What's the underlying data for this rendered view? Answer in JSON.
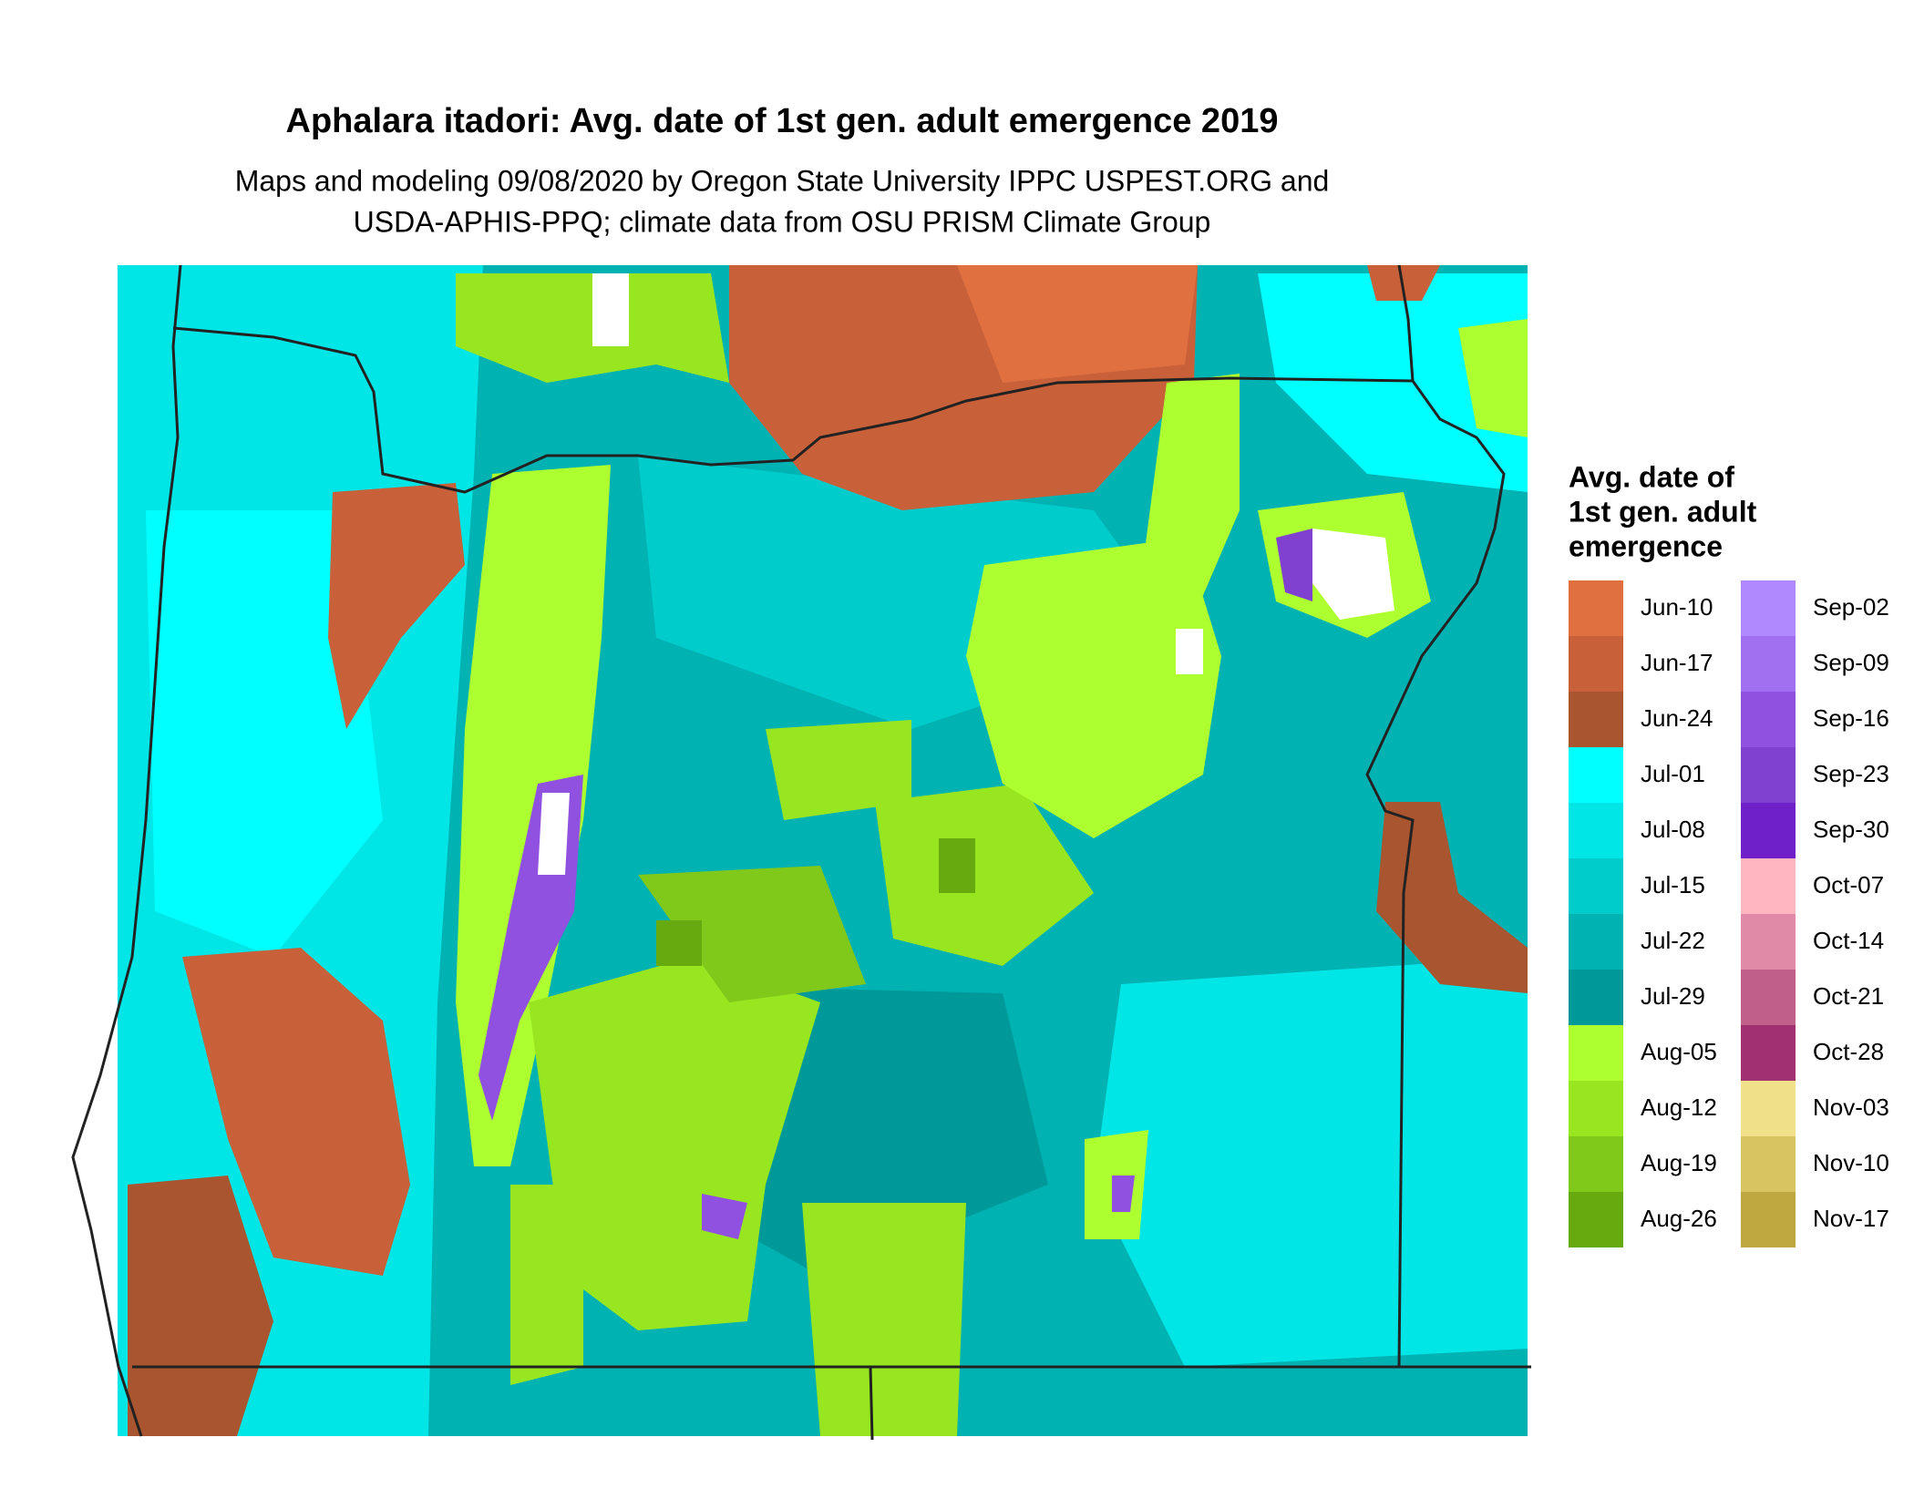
{
  "title": "Aphalara itadori: Avg. date of 1st gen. adult emergence 2019",
  "subtitle": [
    "Maps and modeling 09/08/2020 by Oregon State University IPPC USPEST.ORG and",
    "USDA-APHIS-PPQ; climate data from OSU PRISM Climate Group"
  ],
  "legend": {
    "title": [
      "Avg. date of",
      "1st gen. adult",
      "emergence"
    ],
    "entries": [
      {
        "label": "Jun-10",
        "color": "#e07040"
      },
      {
        "label": "Jun-17",
        "color": "#c8603a"
      },
      {
        "label": "Jun-24",
        "color": "#a85530"
      },
      {
        "label": "Jul-01",
        "color": "#00ffff"
      },
      {
        "label": "Jul-08",
        "color": "#00e5e5"
      },
      {
        "label": "Jul-15",
        "color": "#00cccc"
      },
      {
        "label": "Jul-22",
        "color": "#00b2b2"
      },
      {
        "label": "Jul-29",
        "color": "#009999"
      },
      {
        "label": "Aug-05",
        "color": "#adff2f"
      },
      {
        "label": "Aug-12",
        "color": "#98e620"
      },
      {
        "label": "Aug-19",
        "color": "#80c81a"
      },
      {
        "label": "Aug-26",
        "color": "#66aa10"
      },
      {
        "label": "Sep-02",
        "color": "#b088ff"
      },
      {
        "label": "Sep-09",
        "color": "#a070f0"
      },
      {
        "label": "Sep-16",
        "color": "#9050e0"
      },
      {
        "label": "Sep-23",
        "color": "#8040d0"
      },
      {
        "label": "Sep-30",
        "color": "#7020c8"
      },
      {
        "label": "Oct-07",
        "color": "#ffb6c1"
      },
      {
        "label": "Oct-14",
        "color": "#e08aa8"
      },
      {
        "label": "Oct-21",
        "color": "#c06088"
      },
      {
        "label": "Oct-28",
        "color": "#a03070"
      },
      {
        "label": "Nov-03",
        "color": "#f0e08a"
      },
      {
        "label": "Nov-10",
        "color": "#d8c460"
      },
      {
        "label": "Nov-17",
        "color": "#c0a840"
      }
    ]
  }
}
